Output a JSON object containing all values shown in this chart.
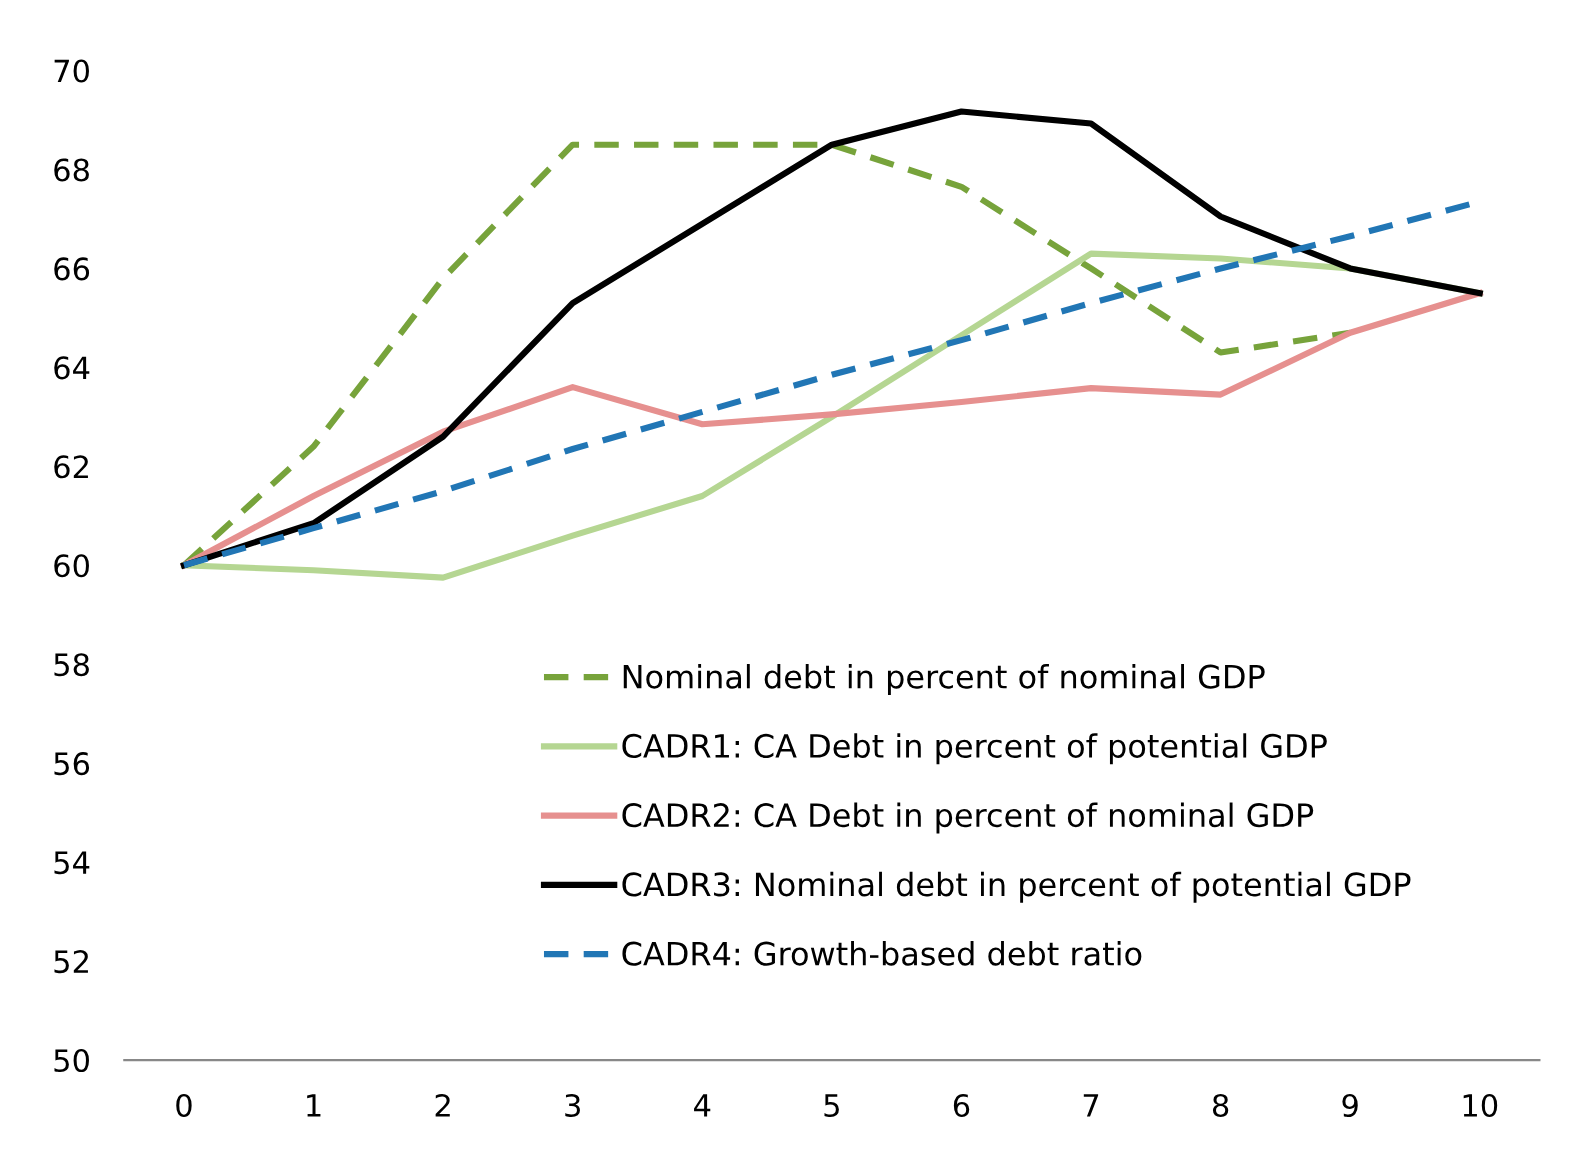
{
  "chart_data": {
    "type": "line",
    "categories": [
      "0",
      "1",
      "2",
      "3",
      "4",
      "5",
      "6",
      "7",
      "8",
      "9",
      "10"
    ],
    "ylim": [
      50,
      70
    ],
    "yticks": [
      50,
      52,
      54,
      56,
      58,
      60,
      62,
      64,
      66,
      68,
      70
    ],
    "grid": false,
    "legend": "bottom right",
    "series": [
      {
        "name": "Nominal debt in percent of nominal GDP",
        "color": "#77a33b",
        "line_style": "dashed",
        "values": [
          60,
          62.4,
          65.8,
          68.5,
          68.5,
          68.5,
          67.65,
          66.0,
          64.3,
          64.7,
          null
        ]
      },
      {
        "name": "CADR1: CA Debt in percent of potential GDP",
        "color": "#b5d692",
        "line_style": "solid",
        "values": [
          60,
          59.9,
          59.75,
          60.6,
          61.4,
          63.0,
          64.65,
          66.3,
          66.2,
          66.0,
          65.5
        ]
      },
      {
        "name": "CADR2: CA Debt in percent of nominal GDP",
        "color": "#e6908f",
        "line_style": "solid",
        "values": [
          60,
          61.4,
          62.7,
          63.6,
          62.85,
          63.05,
          63.3,
          63.58,
          63.45,
          64.7,
          65.5
        ]
      },
      {
        "name": "CADR3: Nominal debt in percent of potential GDP",
        "color": "#000000",
        "line_style": "solid",
        "values": [
          60,
          60.85,
          62.6,
          65.3,
          66.9,
          68.5,
          69.17,
          68.93,
          67.05,
          66.0,
          65.5
        ]
      },
      {
        "name": "CADR4: Growth-based debt ratio",
        "color": "#2176b5",
        "line_style": "dashed",
        "values": [
          60,
          60.75,
          61.5,
          62.35,
          63.1,
          63.85,
          64.55,
          65.3,
          66.0,
          66.65,
          67.35
        ]
      }
    ]
  }
}
